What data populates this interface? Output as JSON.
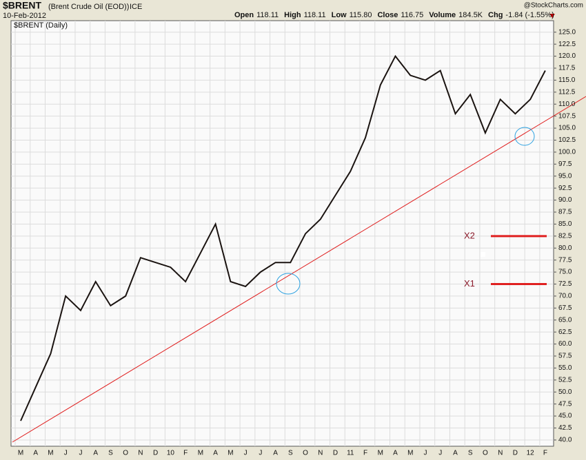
{
  "header": {
    "symbol": "$BRENT",
    "description": "(Brent Crude Oil (EOD))",
    "exchange": "ICE",
    "date": "10-Feb-2012",
    "brand": "@StockCharts.com",
    "quote": [
      {
        "label": "Open",
        "value": "118.11"
      },
      {
        "label": "High",
        "value": "118.11"
      },
      {
        "label": "Low",
        "value": "115.80"
      },
      {
        "label": "Close",
        "value": "116.75"
      },
      {
        "label": "Volume",
        "value": "184.5K"
      },
      {
        "label": "Chg",
        "value": "-1.84 (-1.55%)"
      }
    ]
  },
  "chart_data": {
    "type": "line",
    "legend": "$BRENT (Daily)",
    "categories": [
      "M",
      "A",
      "M",
      "J",
      "J",
      "A",
      "S",
      "O",
      "N",
      "D",
      "10",
      "F",
      "M",
      "A",
      "M",
      "J",
      "J",
      "A",
      "S",
      "O",
      "N",
      "D",
      "11",
      "F",
      "M",
      "A",
      "M",
      "J",
      "J",
      "A",
      "S",
      "O",
      "N",
      "D",
      "12",
      "F"
    ],
    "series": [
      {
        "name": "$BRENT",
        "color": "#1a1310",
        "values": [
          44,
          51,
          58,
          70,
          67,
          73,
          68,
          70,
          78,
          77,
          76,
          73,
          79,
          85,
          73,
          72,
          75,
          77,
          77,
          83,
          86,
          91,
          96,
          103,
          114,
          120,
          116,
          115,
          117,
          108,
          112,
          104,
          111,
          108,
          111,
          117
        ]
      }
    ],
    "annotations": [
      {
        "label": "X2",
        "value": 82.5
      },
      {
        "label": "X1",
        "value": 72.5
      }
    ],
    "ylim": [
      38.7,
      127.4
    ],
    "yticks": [
      {
        "value": 40,
        "label": "40.0"
      },
      42.5,
      {
        "value": 45,
        "label": "45.0"
      },
      47.5,
      {
        "value": 50,
        "label": "50.0"
      },
      52.5,
      {
        "value": 55,
        "label": "55.0"
      },
      57.5,
      {
        "value": 60,
        "label": "60.0"
      },
      62.5,
      {
        "value": 65,
        "label": "65.0"
      },
      67.5,
      {
        "value": 70,
        "label": "70.0"
      },
      72.5,
      {
        "value": 75,
        "label": "75.0"
      },
      77.5,
      {
        "value": 80,
        "label": "80.0"
      },
      82.5,
      {
        "value": 85,
        "label": "85.0"
      },
      87.5,
      {
        "value": 90,
        "label": "90.0"
      },
      92.5,
      {
        "value": 95,
        "label": "95.0"
      },
      97.5,
      {
        "value": 100,
        "label": "100.0"
      },
      102.5,
      {
        "value": 105,
        "label": "105.0"
      },
      107.5,
      {
        "value": 110,
        "label": "110.0"
      },
      112.5,
      {
        "value": 115,
        "label": "115.0"
      },
      117.5,
      {
        "value": 120,
        "label": "120.0"
      },
      122.5,
      {
        "value": 125,
        "label": "125.0"
      }
    ],
    "grid": true
  }
}
